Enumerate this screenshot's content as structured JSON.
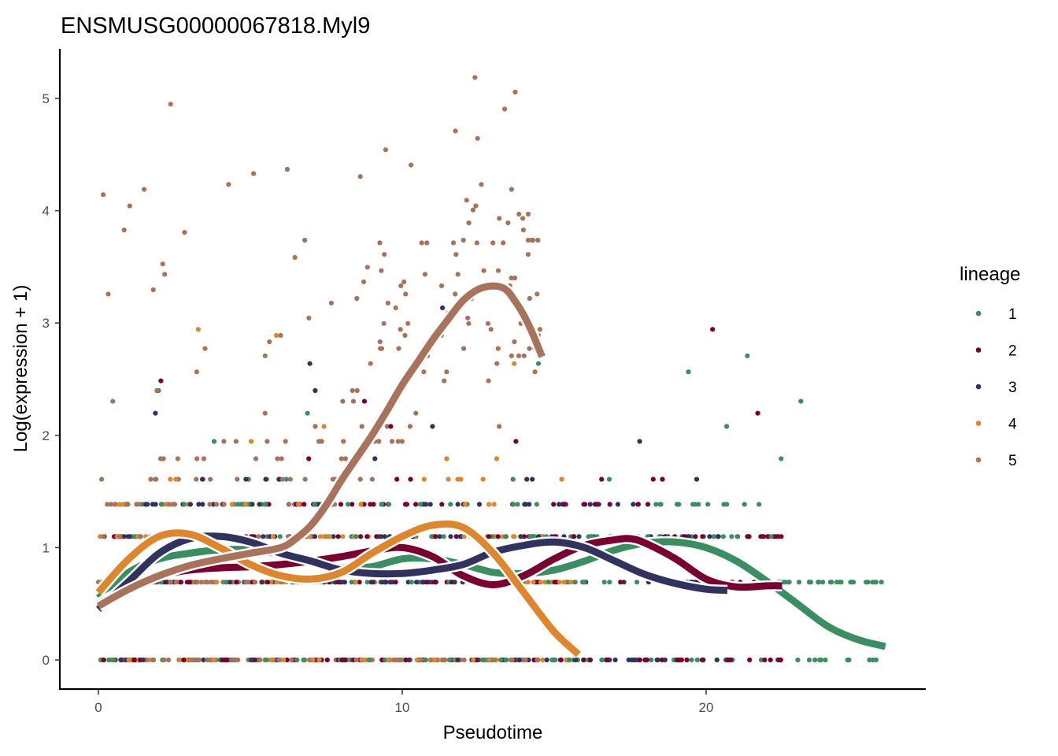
{
  "chart_data": {
    "type": "scatter",
    "title": "ENSMUSG00000067818.Myl9",
    "xlabel": "Pseudotime",
    "ylabel": "Log(expression + 1)",
    "xlim": [
      -1.2,
      27.1
    ],
    "ylim": [
      -0.25,
      5.45
    ],
    "x_ticks": [
      0,
      10,
      20
    ],
    "y_ticks": [
      0,
      1,
      2,
      3,
      4,
      5
    ],
    "grid": false,
    "legend": {
      "title": "lineage",
      "position": "right"
    },
    "series": [
      {
        "name": "1",
        "color": "#3A8E61",
        "x_range": [
          0,
          25.9
        ],
        "levels": [
          0,
          0.693,
          1.099,
          1.386,
          1.609,
          1.792,
          1.946,
          2.079,
          2.197,
          2.303,
          2.398,
          2.565,
          2.639,
          2.708
        ],
        "smooth": [
          [
            0,
            0.55
          ],
          [
            1,
            0.78
          ],
          [
            2,
            0.9
          ],
          [
            3,
            0.95
          ],
          [
            4,
            0.98
          ],
          [
            5,
            0.98
          ],
          [
            6,
            0.94
          ],
          [
            7,
            0.87
          ],
          [
            8,
            0.82
          ],
          [
            9,
            0.83
          ],
          [
            10,
            0.9
          ],
          [
            11,
            0.9
          ],
          [
            12,
            0.85
          ],
          [
            13,
            0.78
          ],
          [
            14,
            0.77
          ],
          [
            15,
            0.8
          ],
          [
            16,
            0.88
          ],
          [
            17,
            0.98
          ],
          [
            18,
            1.04
          ],
          [
            19,
            1.05
          ],
          [
            20,
            1.0
          ],
          [
            21,
            0.88
          ],
          [
            22,
            0.7
          ],
          [
            23,
            0.5
          ],
          [
            24,
            0.3
          ],
          [
            25,
            0.18
          ],
          [
            25.9,
            0.12
          ]
        ]
      },
      {
        "name": "2",
        "color": "#7A0032",
        "x_range": [
          0,
          22.5
        ],
        "levels": [
          0,
          0.693,
          1.099,
          1.386,
          1.609,
          1.792,
          1.946,
          2.079,
          2.197,
          2.303,
          2.485,
          2.944
        ],
        "smooth": [
          [
            0,
            0.5
          ],
          [
            1,
            0.65
          ],
          [
            2,
            0.75
          ],
          [
            3,
            0.8
          ],
          [
            4,
            0.82
          ],
          [
            5,
            0.83
          ],
          [
            6,
            0.85
          ],
          [
            7,
            0.88
          ],
          [
            8,
            0.92
          ],
          [
            9,
            0.97
          ],
          [
            10,
            1.0
          ],
          [
            11,
            0.92
          ],
          [
            12,
            0.75
          ],
          [
            13,
            0.67
          ],
          [
            14,
            0.75
          ],
          [
            15,
            0.9
          ],
          [
            16,
            1.02
          ],
          [
            17,
            1.07
          ],
          [
            17.5,
            1.08
          ],
          [
            18,
            1.04
          ],
          [
            19,
            0.9
          ],
          [
            20,
            0.72
          ],
          [
            21,
            0.65
          ],
          [
            22,
            0.66
          ],
          [
            22.5,
            0.66
          ]
        ]
      },
      {
        "name": "3",
        "color": "#31325E",
        "x_range": [
          0,
          20.7
        ],
        "levels": [
          0,
          0.693,
          1.099,
          1.386,
          1.609,
          1.792,
          1.946,
          2.079,
          2.197,
          2.398,
          2.639,
          3.135
        ],
        "smooth": [
          [
            0,
            0.45
          ],
          [
            1,
            0.7
          ],
          [
            2,
            0.95
          ],
          [
            3,
            1.08
          ],
          [
            4,
            1.1
          ],
          [
            5,
            1.05
          ],
          [
            6,
            0.95
          ],
          [
            7,
            0.88
          ],
          [
            8,
            0.8
          ],
          [
            9,
            0.77
          ],
          [
            10,
            0.77
          ],
          [
            11,
            0.8
          ],
          [
            12,
            0.85
          ],
          [
            13,
            0.96
          ],
          [
            14,
            1.02
          ],
          [
            15,
            1.05
          ],
          [
            16,
            1.0
          ],
          [
            17,
            0.88
          ],
          [
            18,
            0.76
          ],
          [
            19,
            0.68
          ],
          [
            20,
            0.63
          ],
          [
            20.7,
            0.62
          ]
        ]
      },
      {
        "name": "4",
        "color": "#DE862D",
        "x_range": [
          0,
          15.8
        ],
        "levels": [
          0,
          0.693,
          1.099,
          1.386,
          1.609,
          1.792,
          1.946,
          2.079,
          2.639,
          2.89,
          2.944
        ],
        "smooth": [
          [
            0,
            0.6
          ],
          [
            1,
            0.9
          ],
          [
            2,
            1.1
          ],
          [
            3,
            1.12
          ],
          [
            4,
            1.0
          ],
          [
            5,
            0.85
          ],
          [
            6,
            0.75
          ],
          [
            7,
            0.72
          ],
          [
            8,
            0.78
          ],
          [
            9,
            0.95
          ],
          [
            10,
            1.1
          ],
          [
            11,
            1.2
          ],
          [
            12,
            1.18
          ],
          [
            13,
            0.95
          ],
          [
            14,
            0.6
          ],
          [
            15,
            0.25
          ],
          [
            15.8,
            0.05
          ]
        ]
      },
      {
        "name": "5",
        "color": "#A8735A",
        "x_range": [
          0,
          14.6
        ],
        "levels": [
          0,
          0.693,
          1.099,
          1.386,
          1.609,
          1.792,
          1.946,
          2.079,
          2.197,
          2.303,
          2.398,
          2.485,
          2.565,
          2.639,
          2.708,
          2.773,
          2.833,
          2.89,
          2.944,
          2.996,
          3.045,
          3.091,
          3.135,
          3.178,
          3.219,
          3.258,
          3.296,
          3.332,
          3.367,
          3.401,
          3.434,
          3.466,
          3.497,
          3.526,
          3.584,
          3.611,
          3.714,
          3.738,
          3.807,
          3.829,
          3.892,
          3.932,
          3.97,
          4.007,
          4.043,
          4.094,
          4.143,
          4.19,
          4.234,
          4.304,
          4.331,
          4.369,
          4.407,
          4.543,
          4.644,
          4.71,
          4.905,
          4.949,
          5.056,
          5.187
        ],
        "smooth": [
          [
            0,
            0.48
          ],
          [
            1,
            0.63
          ],
          [
            2,
            0.75
          ],
          [
            3,
            0.84
          ],
          [
            4,
            0.9
          ],
          [
            5,
            0.95
          ],
          [
            6,
            1.0
          ],
          [
            6.5,
            1.08
          ],
          [
            7,
            1.2
          ],
          [
            7.5,
            1.38
          ],
          [
            8,
            1.6
          ],
          [
            8.5,
            1.8
          ],
          [
            9,
            2.0
          ],
          [
            9.5,
            2.22
          ],
          [
            10,
            2.45
          ],
          [
            10.5,
            2.65
          ],
          [
            11,
            2.85
          ],
          [
            11.5,
            3.03
          ],
          [
            12,
            3.2
          ],
          [
            12.5,
            3.3
          ],
          [
            13,
            3.33
          ],
          [
            13.4,
            3.3
          ],
          [
            13.7,
            3.2
          ],
          [
            14,
            3.07
          ],
          [
            14.3,
            2.9
          ],
          [
            14.6,
            2.7
          ]
        ]
      }
    ]
  }
}
